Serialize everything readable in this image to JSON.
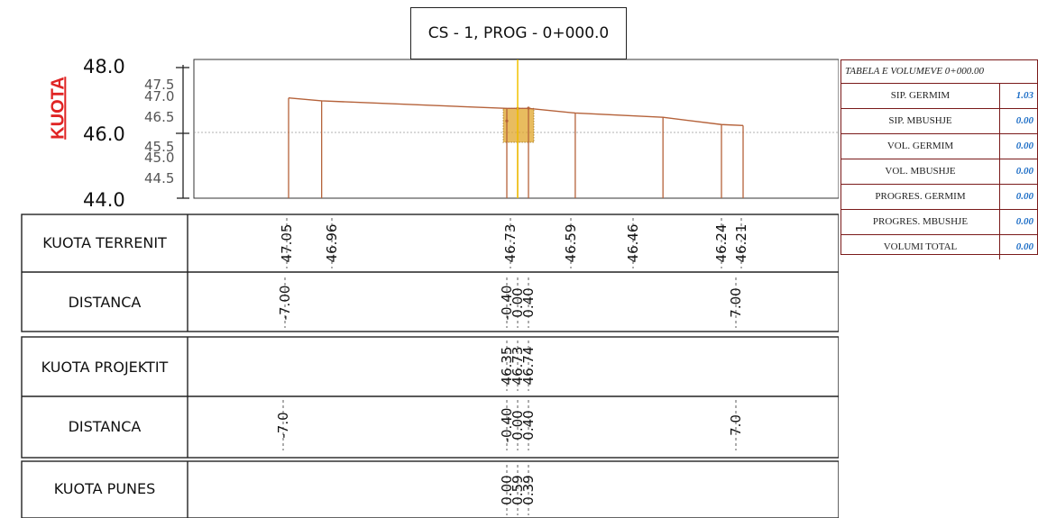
{
  "title": "CS - 1, PROG - 0+000.0",
  "axis": {
    "label": "KUOTA",
    "major_ticks": [
      "48.0",
      "46.0",
      "44.0"
    ],
    "minor_ticks": [
      "47.5",
      "47.0",
      "46.5",
      "45.5",
      "45.0",
      "44.5"
    ]
  },
  "chart_data": {
    "type": "line",
    "title": "CS - 1, PROG - 0+000.0",
    "ylabel": "KUOTA",
    "ylim": [
      44.0,
      48.0
    ],
    "terrain": {
      "name": "KUOTA TERRENIT",
      "x": [
        -7.0,
        -6.0,
        -0.4,
        0.0,
        0.4,
        2.0,
        5.0,
        7.0,
        7.5
      ],
      "y": [
        47.05,
        46.96,
        46.73,
        46.73,
        46.73,
        46.59,
        46.46,
        46.24,
        46.21
      ]
    },
    "design": {
      "name": "KUOTA PROJEKTIT",
      "x": [
        -0.4,
        0.0,
        0.4
      ],
      "y": [
        46.35,
        46.73,
        46.74
      ]
    }
  },
  "band": {
    "kuota_terrenit": {
      "label": "KUOTA TERRENIT",
      "values": [
        "47.05",
        "46.96",
        "46.73",
        "46.59",
        "46.46",
        "46.24",
        "46.21"
      ]
    },
    "distanca_1": {
      "label": "DISTANCA",
      "values": [
        "-7.00",
        "-0.40",
        "0.00",
        "0.40",
        "7.00"
      ]
    },
    "kuota_projektit": {
      "label": "KUOTA PROJEKTIT",
      "values": [
        "46.35",
        "46.73",
        "46.74"
      ]
    },
    "distanca_2": {
      "label": "DISTANCA",
      "values": [
        "-7.0",
        "-0.40",
        "0.00",
        "0.40",
        "7.0"
      ]
    },
    "kuota_punes": {
      "label": "KUOTA PUNES",
      "values": [
        "0.00",
        "0.59",
        "0.39"
      ]
    }
  },
  "volume_table": {
    "title": "TABELA E VOLUMEVE 0+000.00",
    "rows": [
      {
        "label": "SIP. GERMIM",
        "value": "1.03"
      },
      {
        "label": "SIP. MBUSHJE",
        "value": "0.00"
      },
      {
        "label": "VOL. GERMIM",
        "value": "0.00"
      },
      {
        "label": "VOL. MBUSHJE",
        "value": "0.00"
      },
      {
        "label": "PROGRES. GERMIM",
        "value": "0.00"
      },
      {
        "label": "PROGRES. MBUSHJE",
        "value": "0.00"
      },
      {
        "label": "VOLUMI TOTAL",
        "value": "0.00"
      }
    ]
  },
  "colors": {
    "profile": "#b5623a",
    "axis_label": "#e02424",
    "center": "#f2c200",
    "fill": "#e0a52a",
    "table_value": "#1f6fc7",
    "table_border": "#7a1a1a"
  }
}
